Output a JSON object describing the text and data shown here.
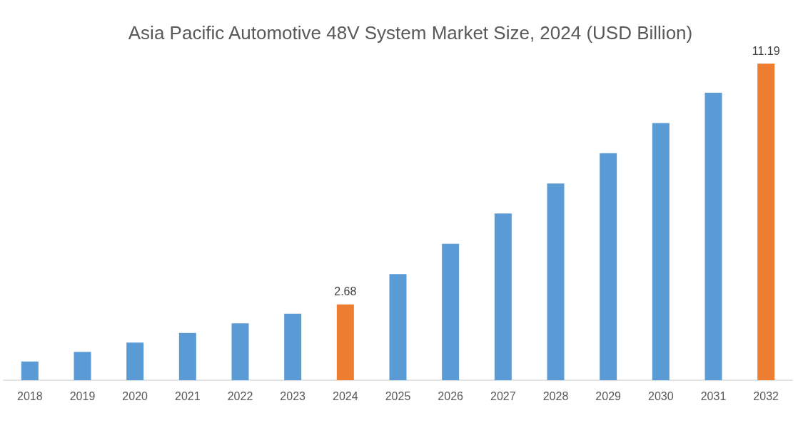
{
  "chart_data": {
    "type": "bar",
    "title": "Asia Pacific Automotive 48V System Market Size, 2024 (USD Billion)",
    "categories": [
      "2018",
      "2019",
      "2020",
      "2021",
      "2022",
      "2023",
      "2024",
      "2025",
      "2026",
      "2027",
      "2028",
      "2029",
      "2030",
      "2031",
      "2032"
    ],
    "values": [
      0.66,
      1.0,
      1.33,
      1.67,
      2.01,
      2.35,
      2.68,
      3.75,
      4.82,
      5.89,
      6.95,
      8.02,
      9.09,
      10.16,
      11.19
    ],
    "colors": [
      "#5b9bd5",
      "#5b9bd5",
      "#5b9bd5",
      "#5b9bd5",
      "#5b9bd5",
      "#5b9bd5",
      "#ed7d31",
      "#5b9bd5",
      "#5b9bd5",
      "#5b9bd5",
      "#5b9bd5",
      "#5b9bd5",
      "#5b9bd5",
      "#5b9bd5",
      "#ed7d31"
    ],
    "value_labels": [
      null,
      null,
      null,
      null,
      null,
      null,
      "2.68",
      null,
      null,
      null,
      null,
      null,
      null,
      null,
      "11.19"
    ]
  }
}
